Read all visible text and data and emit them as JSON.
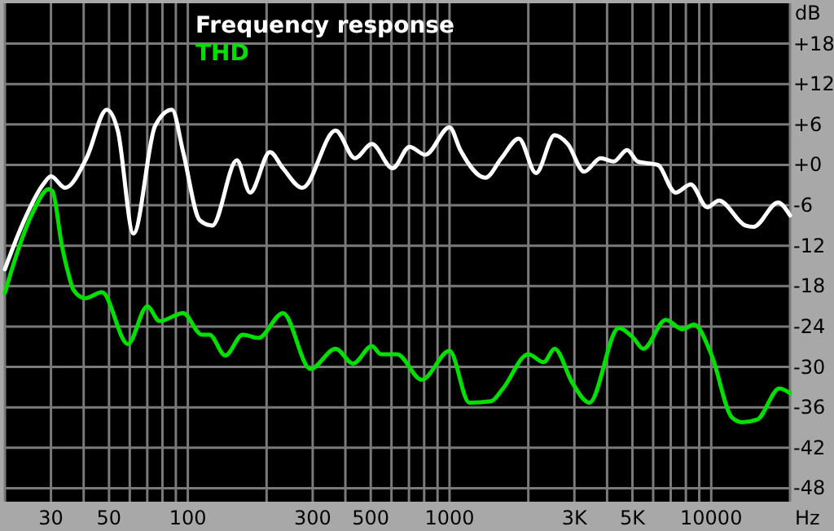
{
  "chart_data": {
    "type": "line",
    "xlabel": "Hz",
    "ylabel": "dB",
    "log": "x",
    "grid": true,
    "legend": "top left",
    "marker": "none",
    "line_style": "solid",
    "xlim": [
      20,
      20000
    ],
    "ylim": [
      -50,
      24
    ],
    "xticks": [
      {
        "value": 20,
        "label": null
      },
      "30",
      {
        "value": 40,
        "label": null
      },
      50,
      {
        "value": 60,
        "label": null
      },
      {
        "value": 70,
        "label": null
      },
      {
        "value": 80,
        "label": null
      },
      {
        "value": 90,
        "label": null
      },
      100,
      {
        "value": 200,
        "label": null
      },
      300,
      {
        "value": 400,
        "label": null
      },
      500,
      {
        "value": 600,
        "label": null
      },
      {
        "value": 700,
        "label": null
      },
      {
        "value": 800,
        "label": null
      },
      {
        "value": 900,
        "label": null
      },
      1000,
      {
        "value": 2000,
        "label": null
      },
      {
        "value": 3000,
        "label": "3K"
      },
      {
        "value": 4000,
        "label": null
      },
      {
        "value": 5000,
        "label": "5K"
      },
      {
        "value": 6000,
        "label": null
      },
      {
        "value": 7000,
        "label": null
      },
      {
        "value": 8000,
        "label": null
      },
      {
        "value": 9000,
        "label": null
      },
      10000,
      {
        "value": 20000,
        "label": null
      }
    ],
    "yticks": [
      {
        "value": 18,
        "label": "+18"
      },
      {
        "value": 12,
        "label": "+12"
      },
      {
        "value": 6,
        "label": "+6"
      },
      {
        "value": 0,
        "label": "+0"
      },
      -6,
      -12,
      -18,
      -24,
      -30,
      -36,
      -42,
      -48
    ],
    "series": [
      {
        "name": "Frequency response",
        "color": "#ffffff",
        "x": [
          20,
          23,
          28,
          30,
          34,
          41,
          49,
          54,
          62,
          75,
          87,
          96,
          111,
          124,
          154,
          173,
          206,
          231,
          274,
          367,
          435,
          505,
          606,
          704,
          808,
          1000,
          1100,
          1370,
          1580,
          1840,
          2140,
          2520,
          2830,
          3270,
          3780,
          4240,
          4770,
          5240,
          6240,
          7300,
          8350,
          9660,
          10700,
          13500,
          14500,
          18000,
          20000
        ],
        "values": [
          -15.5,
          -9.4,
          -2.9,
          -1.7,
          -3.4,
          1,
          8.2,
          5.1,
          -10.2,
          5.8,
          8.2,
          1.9,
          -8.2,
          -9,
          0.7,
          -4.1,
          1.9,
          -0.5,
          -3.4,
          5.1,
          1,
          3.1,
          -0.5,
          2.7,
          1.5,
          5.6,
          2.2,
          -1.9,
          1,
          3.9,
          -1.2,
          4.4,
          3.1,
          -1,
          1,
          0.5,
          2.2,
          0.5,
          0,
          -4.1,
          -2.9,
          -6.3,
          -5.3,
          -9,
          -9.2,
          -5.6,
          -7.5
        ]
      },
      {
        "name": "THD",
        "color": "#00e000",
        "x": [
          20,
          21,
          25.6,
          29.4,
          30.4,
          33,
          35,
          36.6,
          40.5,
          47,
          59,
          70,
          78,
          96,
          113,
          121,
          139,
          162,
          186,
          231,
          294,
          367,
          428,
          505,
          547,
          630,
          783,
          1000,
          1190,
          1440,
          1600,
          2000,
          2290,
          2520,
          2950,
          3420,
          4430,
          5040,
          5500,
          6700,
          7760,
          8600,
          10000,
          12000,
          13100,
          15000,
          18200,
          20000
        ],
        "values": [
          -19,
          -16.2,
          -7,
          -3.6,
          -3.9,
          -11.9,
          -16.2,
          -18.6,
          -19.8,
          -18.9,
          -26.6,
          -21,
          -23.2,
          -22,
          -25.2,
          -25.2,
          -28.3,
          -25.2,
          -25.7,
          -22,
          -30.3,
          -27.3,
          -29.5,
          -26.9,
          -28.1,
          -28.1,
          -31.9,
          -27.6,
          -35.3,
          -35.1,
          -33.2,
          -28.1,
          -29.3,
          -27.3,
          -32.4,
          -35.3,
          -24.2,
          -25.7,
          -27.3,
          -23,
          -24.4,
          -23.7,
          -28.1,
          -37.5,
          -38.2,
          -37.8,
          -33.2,
          -33.9
        ]
      }
    ]
  }
}
